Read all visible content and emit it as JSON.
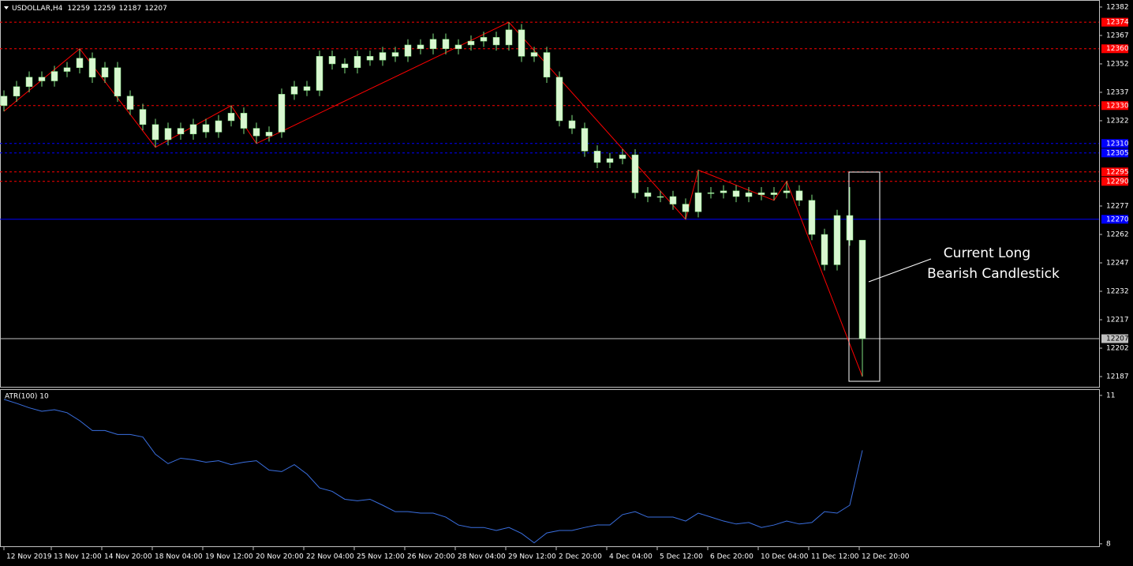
{
  "header": {
    "symbol": "USDOLLAR,H4"
  },
  "chart_data": [
    {
      "type": "candlestick",
      "open": [
        12330,
        12335,
        12340,
        12345,
        12343,
        12348,
        12350,
        12355,
        12345,
        12350,
        12335,
        12328,
        12320,
        12312,
        12318,
        12315,
        12320,
        12316,
        12322,
        12326,
        12318,
        12314,
        12316,
        12336,
        12340,
        12338,
        12356,
        12352,
        12350,
        12356,
        12354,
        12358,
        12356,
        12362,
        12360,
        12365,
        12360,
        12362,
        12364,
        12366,
        12362,
        12370,
        12356,
        12358,
        12345,
        12322,
        12318,
        12306,
        12300,
        12302,
        12304,
        12284,
        12282,
        12282,
        12278,
        12274,
        12284,
        12284,
        12285,
        12282,
        12284,
        12283,
        12284,
        12285,
        12280,
        12262,
        12246,
        12272,
        12259
      ],
      "high": [
        12338,
        12343,
        12348,
        12348,
        12351,
        12353,
        12360,
        12358,
        12353,
        12353,
        12338,
        12331,
        12323,
        12321,
        12321,
        12323,
        12323,
        12325,
        12330,
        12329,
        12321,
        12319,
        12339,
        12343,
        12343,
        12359,
        12359,
        12355,
        12359,
        12359,
        12361,
        12361,
        12365,
        12365,
        12368,
        12368,
        12365,
        12367,
        12369,
        12369,
        12374,
        12373,
        12361,
        12361,
        12348,
        12325,
        12321,
        12309,
        12305,
        12307,
        12307,
        12287,
        12285,
        12285,
        12281,
        12296,
        12287,
        12288,
        12288,
        12287,
        12287,
        12287,
        12290,
        12288,
        12283,
        12265,
        12275,
        12287,
        12259
      ],
      "low": [
        12327,
        12332,
        12337,
        12340,
        12340,
        12345,
        12347,
        12342,
        12342,
        12332,
        12325,
        12317,
        12308,
        12309,
        12312,
        12312,
        12313,
        12313,
        12319,
        12315,
        12310,
        12311,
        12313,
        12333,
        12335,
        12335,
        12349,
        12347,
        12347,
        12351,
        12351,
        12353,
        12353,
        12357,
        12357,
        12357,
        12357,
        12359,
        12361,
        12359,
        12359,
        12353,
        12353,
        12342,
        12319,
        12315,
        12303,
        12297,
        12297,
        12299,
        12281,
        12279,
        12279,
        12275,
        12270,
        12271,
        12281,
        12281,
        12279,
        12279,
        12280,
        12280,
        12281,
        12277,
        12259,
        12243,
        12243,
        12256,
        12187
      ],
      "close": [
        12335,
        12340,
        12345,
        12343,
        12348,
        12350,
        12355,
        12345,
        12350,
        12335,
        12328,
        12320,
        12312,
        12318,
        12315,
        12320,
        12316,
        12322,
        12326,
        12318,
        12314,
        12316,
        12336,
        12340,
        12338,
        12356,
        12352,
        12350,
        12356,
        12354,
        12358,
        12356,
        12362,
        12360,
        12365,
        12360,
        12362,
        12364,
        12366,
        12362,
        12370,
        12356,
        12358,
        12345,
        12322,
        12318,
        12306,
        12300,
        12302,
        12304,
        12284,
        12282,
        12282,
        12278,
        12274,
        12284,
        12284,
        12285,
        12282,
        12284,
        12283,
        12284,
        12285,
        12280,
        12262,
        12246,
        12272,
        12259,
        12207
      ],
      "color": "#d9f7d0",
      "wick_color": "#7fe07f",
      "xlim": [
        -0.3125,
        86.75
      ],
      "xticks": [
        {
          "value": 0,
          "label": "12 Nov 2019"
        },
        {
          "value": 3.75,
          "label": "13 Nov 12:00"
        },
        {
          "value": 7.75,
          "label": "14 Nov 20:00"
        },
        {
          "value": 11.75,
          "label": "18 Nov 04:00"
        },
        {
          "value": 15.75,
          "label": "19 Nov 12:00"
        },
        {
          "value": 19.75,
          "label": "20 Nov 20:00"
        },
        {
          "value": 23.75,
          "label": "22 Nov 04:00"
        },
        {
          "value": 27.75,
          "label": "25 Nov 12:00"
        },
        {
          "value": 31.75,
          "label": "26 Nov 20:00"
        },
        {
          "value": 35.75,
          "label": "28 Nov 04:00"
        },
        {
          "value": 39.75,
          "label": "29 Nov 12:00"
        },
        {
          "value": 43.75,
          "label": "2 Dec 20:00"
        },
        {
          "value": 47.75,
          "label": "4 Dec 04:00"
        },
        {
          "value": 51.75,
          "label": "5 Dec 12:00"
        },
        {
          "value": 55.75,
          "label": "6 Dec 20:00"
        },
        {
          "value": 59.75,
          "label": "10 Dec 04:00"
        },
        {
          "value": 63.75,
          "label": "11 Dec 12:00"
        },
        {
          "value": 67.75,
          "label": "12 Dec 20:00"
        }
      ],
      "ylim": [
        12181.6,
        12385.3
      ],
      "yticks": [
        12382,
        12367,
        12352,
        12337,
        12322,
        12277,
        12262,
        12247,
        12232,
        12217,
        12202,
        12187
      ],
      "zigzag": {
        "color": "#ff0000",
        "x": [
          0,
          6,
          12,
          18,
          20,
          40,
          54,
          55,
          61,
          62,
          68
        ],
        "values": [
          12327,
          12360,
          12308,
          12330,
          12310,
          12374,
          12270,
          12296,
          12280,
          12290,
          12187
        ]
      },
      "levels": [
        {
          "value": 12374,
          "color": "#ff0000",
          "style": "dashed"
        },
        {
          "value": 12360,
          "color": "#ff0000",
          "style": "dashed"
        },
        {
          "value": 12330,
          "color": "#ff0000",
          "style": "dashed"
        },
        {
          "value": 12310,
          "color": "#0000ff",
          "style": "dashed"
        },
        {
          "value": 12305,
          "color": "#0000ff",
          "style": "dashed"
        },
        {
          "value": 12295,
          "color": "#ff0000",
          "style": "dashed"
        },
        {
          "value": 12290,
          "color": "#ff0000",
          "style": "dashed"
        },
        {
          "value": 12270,
          "color": "#0000ff",
          "style": "solid"
        },
        {
          "value": 12207,
          "color": "#c0c0c0",
          "style": "solid"
        }
      ],
      "annotation": [
        "Current Long",
        "Bearish Candlestick"
      ]
    },
    {
      "type": "line",
      "title": "ATR(100) 10",
      "color": "#3a6fe0",
      "values": [
        10.92,
        10.84,
        10.75,
        10.68,
        10.71,
        10.65,
        10.49,
        10.29,
        10.29,
        10.21,
        10.21,
        10.16,
        9.81,
        9.62,
        9.73,
        9.7,
        9.65,
        9.68,
        9.6,
        9.65,
        9.68,
        9.49,
        9.46,
        9.6,
        9.41,
        9.13,
        9.06,
        8.9,
        8.87,
        8.9,
        8.78,
        8.65,
        8.65,
        8.62,
        8.62,
        8.54,
        8.38,
        8.33,
        8.33,
        8.27,
        8.33,
        8.21,
        8.02,
        8.22,
        8.27,
        8.27,
        8.33,
        8.38,
        8.38,
        8.59,
        8.65,
        8.54,
        8.54,
        8.54,
        8.46,
        8.62,
        8.54,
        8.46,
        8.4,
        8.43,
        8.33,
        8.38,
        8.46,
        8.4,
        8.43,
        8.65,
        8.62,
        8.78,
        9.89
      ],
      "xlim": [
        -0.3125,
        86.75
      ],
      "ylim": [
        7.95,
        11.11
      ],
      "yticks": [
        8,
        11
      ]
    }
  ]
}
